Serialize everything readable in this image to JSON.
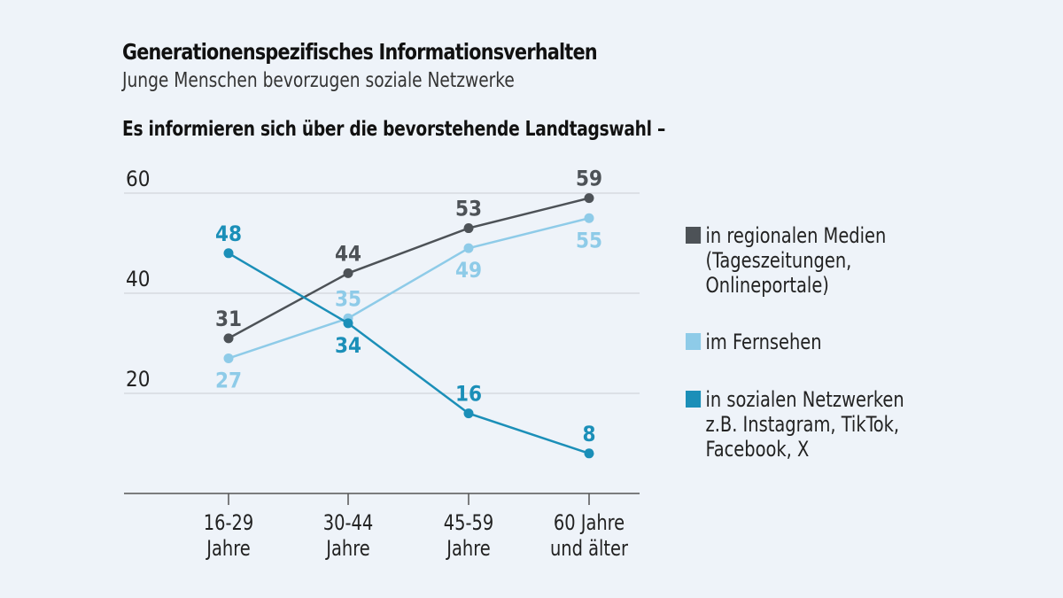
{
  "title": "Generationenspezifisches Informationsverhalten",
  "subtitle": "Junge Menschen bevorzugen soziale Netzwerke",
  "question": "Es informieren sich über die bevorstehende Landtagswahl –",
  "chart_data": {
    "type": "line",
    "categories": [
      "16-29\nJahre",
      "30-44\nJahre",
      "45-59\nJahre",
      "60 Jahre\nund älter"
    ],
    "ylim": [
      0,
      60
    ],
    "yticks": [
      20,
      40,
      60
    ],
    "grid": true,
    "legend_placement": "right",
    "series": [
      {
        "name": "in regionalen Medien\n(Tageszeitungen,\nOnlineportale)",
        "color": "#4d5257",
        "values": [
          31,
          44,
          53,
          59
        ]
      },
      {
        "name": "im Fernsehen",
        "color": "#8ecbe8",
        "values": [
          27,
          35,
          49,
          55
        ]
      },
      {
        "name": "in sozialen Netzwerken\nz.B. Instagram, TikTok,\nFacebook, X",
        "color": "#1b8fb8",
        "values": [
          48,
          34,
          16,
          8
        ]
      }
    ]
  }
}
